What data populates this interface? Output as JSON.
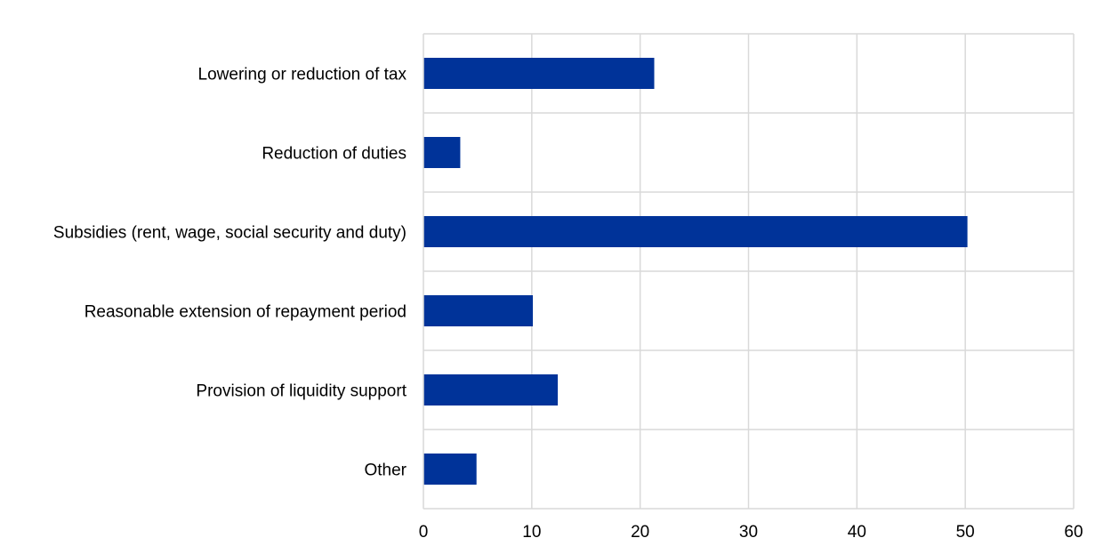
{
  "chart_data": {
    "type": "bar",
    "orientation": "horizontal",
    "categories": [
      "Lowering or reduction of tax",
      "Reduction of duties",
      "Subsidies (rent, wage, social security and duty)",
      "Reasonable extension of repayment period",
      "Provision of liquidity support",
      "Other"
    ],
    "values": [
      21.3,
      3.4,
      50.2,
      10.1,
      12.4,
      4.9
    ],
    "xlim": [
      0,
      60
    ],
    "xticks": [
      "0",
      "10",
      "20",
      "30",
      "40",
      "50",
      "60"
    ],
    "title": "",
    "xlabel": "",
    "ylabel": "",
    "grid": true,
    "legend": "none",
    "bar_color": "#003399",
    "grid_color": "#d9d9d9"
  }
}
